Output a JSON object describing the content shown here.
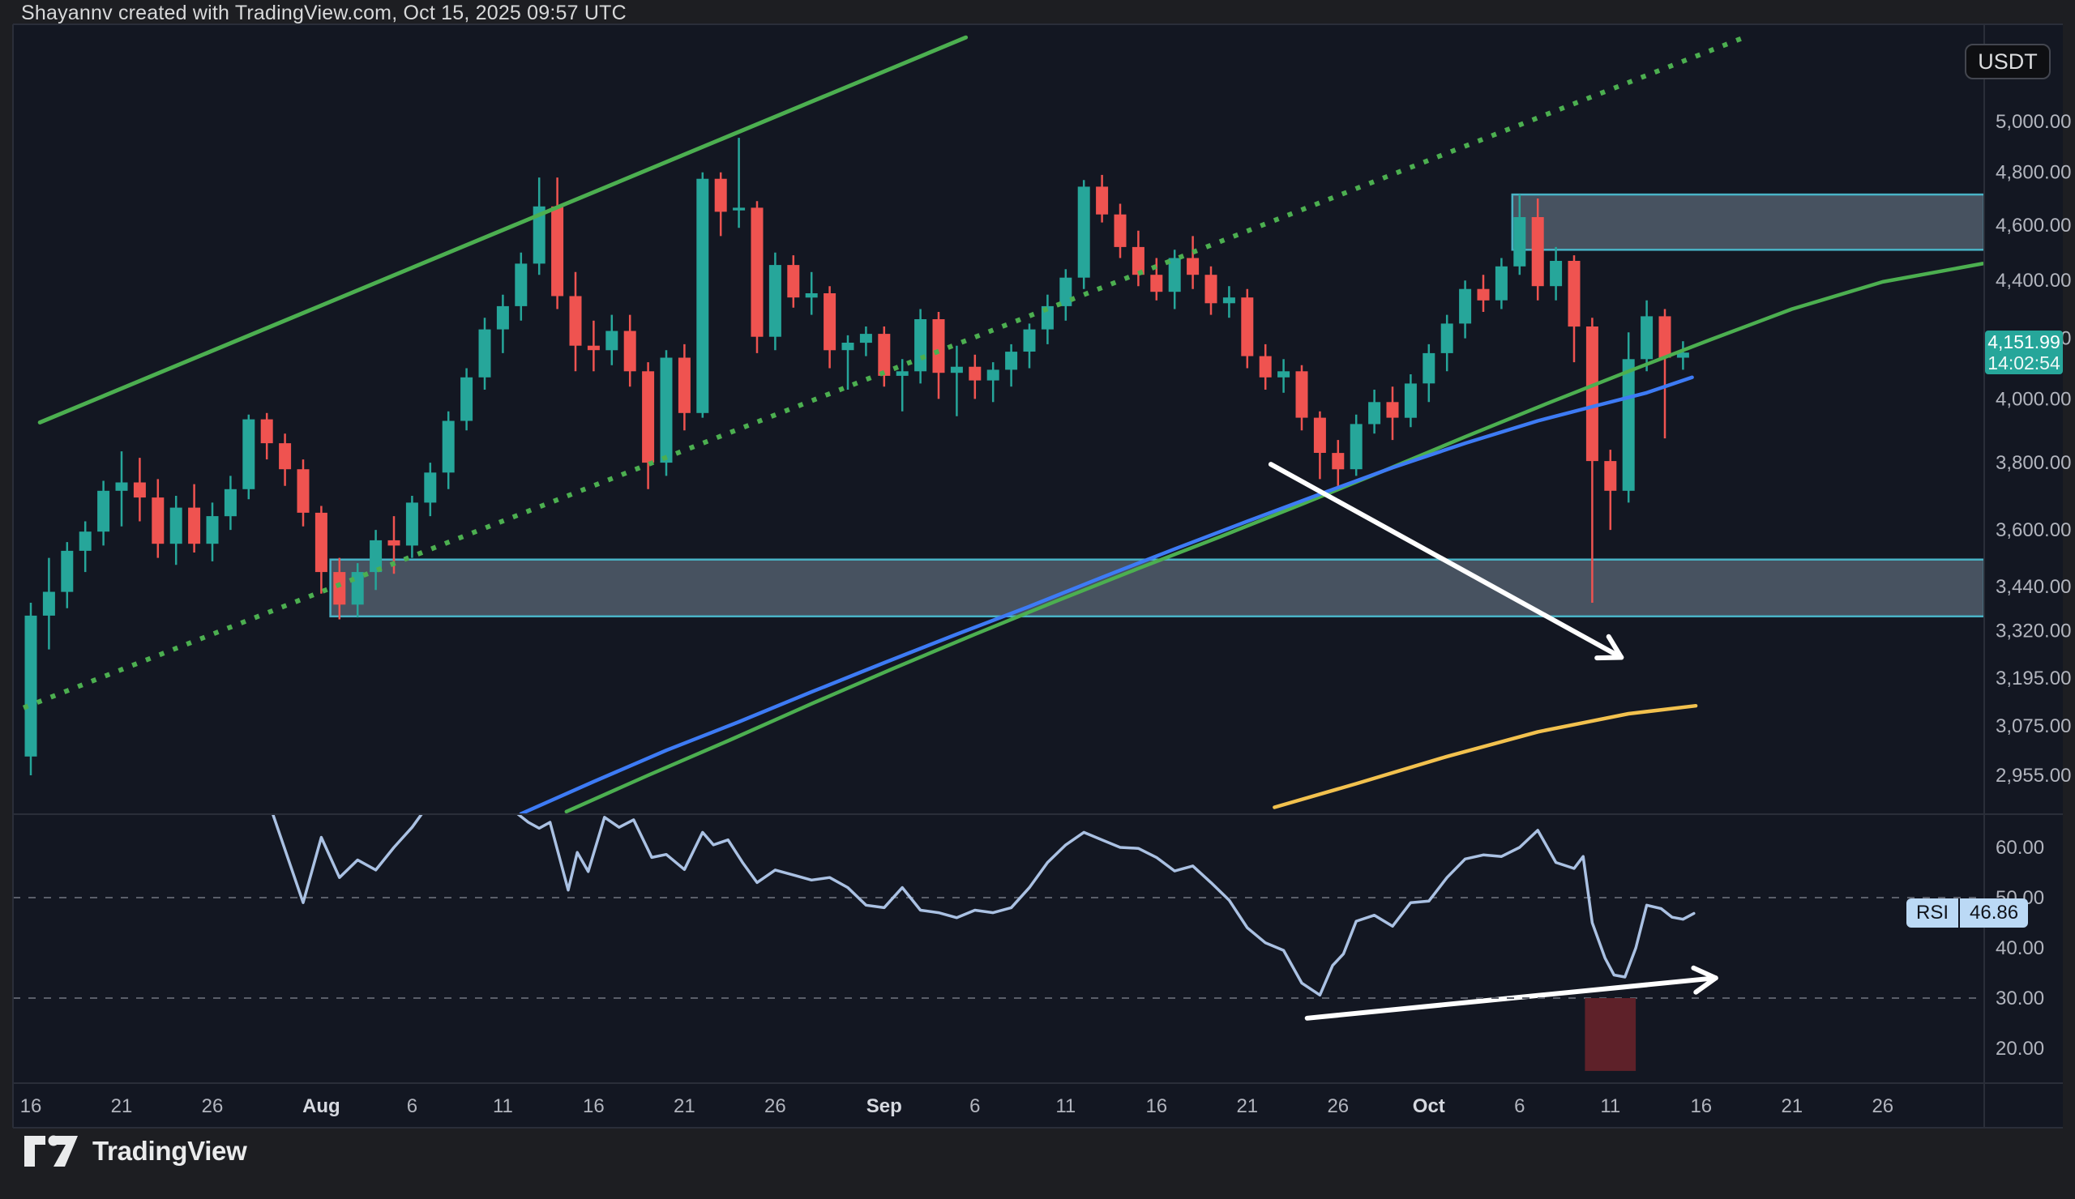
{
  "header": {
    "title": "Shayannv created with TradingView.com, Oct 15, 2025 09:57 UTC"
  },
  "toolbar": {
    "currency_button": "USDT"
  },
  "watermark": {
    "brand": "TradingView"
  },
  "price_scale": {
    "labels": [
      {
        "text": "5,000.00",
        "value": 5000
      },
      {
        "text": "4,800.00",
        "value": 4800
      },
      {
        "text": "4,600.00",
        "value": 4600
      },
      {
        "text": "4,400.00",
        "value": 4400
      },
      {
        "text": "4,200.00",
        "value": 4200
      },
      {
        "text": "4,000.00",
        "value": 4000
      },
      {
        "text": "3,800.00",
        "value": 3800
      },
      {
        "text": "3,600.00",
        "value": 3600
      },
      {
        "text": "3,440.00",
        "value": 3440
      },
      {
        "text": "3,320.00",
        "value": 3320
      },
      {
        "text": "3,195.00",
        "value": 3195
      },
      {
        "text": "3,075.00",
        "value": 3075
      },
      {
        "text": "2,955.00",
        "value": 2955
      }
    ],
    "last_price": "4,151.99",
    "last_price_value": 4151.99,
    "countdown": "14:02:54"
  },
  "rsi_scale": {
    "labels": [
      {
        "text": "60.00",
        "value": 60
      },
      {
        "text": "50.00",
        "value": 50
      },
      {
        "text": "40.00",
        "value": 40
      },
      {
        "text": "30.00",
        "value": 30
      },
      {
        "text": "20.00",
        "value": 20
      }
    ],
    "dashed_levels": [
      50,
      30
    ],
    "indicator_label": "RSI",
    "indicator_value": "46.86",
    "indicator_value_num": 46.86
  },
  "time_scale": {
    "ticks": [
      {
        "label": "16",
        "day": 0,
        "bold": false
      },
      {
        "label": "21",
        "day": 5,
        "bold": false
      },
      {
        "label": "26",
        "day": 10,
        "bold": false
      },
      {
        "label": "Aug",
        "day": 16,
        "bold": true
      },
      {
        "label": "6",
        "day": 21,
        "bold": false
      },
      {
        "label": "11",
        "day": 26,
        "bold": false
      },
      {
        "label": "16",
        "day": 31,
        "bold": false
      },
      {
        "label": "21",
        "day": 36,
        "bold": false
      },
      {
        "label": "26",
        "day": 41,
        "bold": false
      },
      {
        "label": "Sep",
        "day": 47,
        "bold": true
      },
      {
        "label": "6",
        "day": 52,
        "bold": false
      },
      {
        "label": "11",
        "day": 57,
        "bold": false
      },
      {
        "label": "16",
        "day": 62,
        "bold": false
      },
      {
        "label": "21",
        "day": 67,
        "bold": false
      },
      {
        "label": "26",
        "day": 72,
        "bold": false
      },
      {
        "label": "Oct",
        "day": 77,
        "bold": true
      },
      {
        "label": "6",
        "day": 82,
        "bold": false
      },
      {
        "label": "11",
        "day": 87,
        "bold": false
      },
      {
        "label": "16",
        "day": 92,
        "bold": false
      },
      {
        "label": "21",
        "day": 97,
        "bold": false
      },
      {
        "label": "26",
        "day": 102,
        "bold": false
      }
    ]
  },
  "chart_data": {
    "type": "candlestick",
    "interval": "1D",
    "quote_currency": "USDT",
    "start_date": "2025-07-16",
    "end_date": "2025-10-15",
    "last_close": 4151.99,
    "candles_ohlc": [
      [
        3000,
        3395,
        2955,
        3360
      ],
      [
        3360,
        3520,
        3270,
        3425
      ],
      [
        3425,
        3565,
        3380,
        3540
      ],
      [
        3540,
        3625,
        3480,
        3595
      ],
      [
        3595,
        3745,
        3555,
        3715
      ],
      [
        3715,
        3835,
        3610,
        3740
      ],
      [
        3740,
        3815,
        3625,
        3695
      ],
      [
        3695,
        3750,
        3520,
        3560
      ],
      [
        3560,
        3700,
        3500,
        3665
      ],
      [
        3665,
        3735,
        3535,
        3560
      ],
      [
        3560,
        3680,
        3510,
        3640
      ],
      [
        3640,
        3760,
        3600,
        3720
      ],
      [
        3720,
        3950,
        3690,
        3935
      ],
      [
        3935,
        3955,
        3810,
        3860
      ],
      [
        3860,
        3890,
        3730,
        3780
      ],
      [
        3780,
        3810,
        3610,
        3650
      ],
      [
        3650,
        3670,
        3420,
        3480
      ],
      [
        3480,
        3520,
        3350,
        3390
      ],
      [
        3390,
        3505,
        3355,
        3480
      ],
      [
        3480,
        3600,
        3430,
        3570
      ],
      [
        3570,
        3640,
        3475,
        3555
      ],
      [
        3555,
        3700,
        3520,
        3680
      ],
      [
        3680,
        3800,
        3640,
        3770
      ],
      [
        3770,
        3960,
        3720,
        3930
      ],
      [
        3930,
        4100,
        3900,
        4070
      ],
      [
        4070,
        4270,
        4030,
        4230
      ],
      [
        4230,
        4350,
        4150,
        4310
      ],
      [
        4310,
        4500,
        4260,
        4460
      ],
      [
        4460,
        4780,
        4420,
        4670
      ],
      [
        4670,
        4780,
        4300,
        4345
      ],
      [
        4345,
        4430,
        4090,
        4175
      ],
      [
        4175,
        4260,
        4090,
        4160
      ],
      [
        4160,
        4280,
        4110,
        4225
      ],
      [
        4225,
        4280,
        4040,
        4090
      ],
      [
        4090,
        4120,
        3720,
        3800
      ],
      [
        3800,
        4160,
        3760,
        4135
      ],
      [
        4135,
        4180,
        3900,
        3955
      ],
      [
        3955,
        4800,
        3940,
        4775
      ],
      [
        4775,
        4800,
        4560,
        4650
      ],
      [
        4655,
        4935,
        4590,
        4665
      ],
      [
        4665,
        4690,
        4150,
        4205
      ],
      [
        4205,
        4500,
        4160,
        4455
      ],
      [
        4455,
        4490,
        4305,
        4340
      ],
      [
        4340,
        4430,
        4280,
        4355
      ],
      [
        4355,
        4380,
        4100,
        4160
      ],
      [
        4160,
        4210,
        4030,
        4185
      ],
      [
        4185,
        4240,
        4140,
        4215
      ],
      [
        4215,
        4240,
        4040,
        4075
      ],
      [
        4075,
        4130,
        3960,
        4090
      ],
      [
        4090,
        4300,
        4050,
        4265
      ],
      [
        4265,
        4290,
        4000,
        4085
      ],
      [
        4085,
        4175,
        3945,
        4105
      ],
      [
        4105,
        4145,
        4000,
        4060
      ],
      [
        4060,
        4120,
        3990,
        4095
      ],
      [
        4095,
        4180,
        4040,
        4155
      ],
      [
        4155,
        4250,
        4100,
        4230
      ],
      [
        4230,
        4350,
        4180,
        4310
      ],
      [
        4310,
        4440,
        4260,
        4410
      ],
      [
        4410,
        4770,
        4370,
        4745
      ],
      [
        4745,
        4790,
        4610,
        4640
      ],
      [
        4640,
        4680,
        4480,
        4520
      ],
      [
        4520,
        4580,
        4380,
        4420
      ],
      [
        4420,
        4480,
        4330,
        4360
      ],
      [
        4360,
        4510,
        4300,
        4480
      ],
      [
        4480,
        4560,
        4370,
        4420
      ],
      [
        4420,
        4450,
        4280,
        4320
      ],
      [
        4320,
        4380,
        4270,
        4340
      ],
      [
        4340,
        4370,
        4100,
        4140
      ],
      [
        4140,
        4180,
        4030,
        4070
      ],
      [
        4070,
        4130,
        4020,
        4090
      ],
      [
        4090,
        4110,
        3900,
        3940
      ],
      [
        3940,
        3960,
        3750,
        3830
      ],
      [
        3830,
        3870,
        3720,
        3780
      ],
      [
        3780,
        3950,
        3760,
        3920
      ],
      [
        3920,
        4030,
        3890,
        3990
      ],
      [
        3990,
        4040,
        3870,
        3940
      ],
      [
        3940,
        4080,
        3910,
        4050
      ],
      [
        4050,
        4180,
        3990,
        4150
      ],
      [
        4150,
        4280,
        4090,
        4250
      ],
      [
        4250,
        4400,
        4200,
        4370
      ],
      [
        4370,
        4420,
        4290,
        4330
      ],
      [
        4330,
        4480,
        4300,
        4450
      ],
      [
        4450,
        4715,
        4420,
        4630
      ],
      [
        4630,
        4700,
        4330,
        4380
      ],
      [
        4380,
        4520,
        4330,
        4470
      ],
      [
        4470,
        4490,
        4120,
        4240
      ],
      [
        4240,
        4270,
        3395,
        3805
      ],
      [
        3805,
        3840,
        3600,
        3715
      ],
      [
        3715,
        4220,
        3680,
        4130
      ],
      [
        4130,
        4330,
        4090,
        4275
      ],
      [
        4275,
        4300,
        3875,
        4135
      ],
      [
        4135,
        4190,
        4095,
        4152
      ]
    ],
    "rsi_series": [
      [
        13.2,
        68
      ],
      [
        15,
        49
      ],
      [
        16,
        62
      ],
      [
        17,
        54
      ],
      [
        18,
        57.5
      ],
      [
        19,
        55.5
      ],
      [
        20,
        60
      ],
      [
        21,
        64
      ],
      [
        21.8,
        68
      ],
      [
        22.6,
        71
      ],
      [
        23.4,
        70
      ],
      [
        24.2,
        73
      ],
      [
        25,
        72
      ],
      [
        26,
        69
      ],
      [
        27.4,
        65
      ],
      [
        28,
        63.8
      ],
      [
        28.6,
        65
      ],
      [
        29.6,
        51.5
      ],
      [
        30.1,
        59
      ],
      [
        30.7,
        55.2
      ],
      [
        31.6,
        66
      ],
      [
        32.4,
        64
      ],
      [
        33.2,
        65.5
      ],
      [
        34.2,
        58
      ],
      [
        35,
        58.6
      ],
      [
        36,
        55.6
      ],
      [
        37,
        63
      ],
      [
        37.6,
        60.5
      ],
      [
        38.4,
        61.5
      ],
      [
        39.2,
        57
      ],
      [
        40,
        53
      ],
      [
        41,
        55.5
      ],
      [
        42,
        54.5
      ],
      [
        43,
        53.5
      ],
      [
        44,
        54
      ],
      [
        45,
        52
      ],
      [
        46,
        48.5
      ],
      [
        47,
        48
      ],
      [
        48,
        52
      ],
      [
        49,
        47.5
      ],
      [
        50,
        47
      ],
      [
        51,
        46
      ],
      [
        52,
        47.5
      ],
      [
        53,
        47
      ],
      [
        54,
        48
      ],
      [
        55,
        52
      ],
      [
        56,
        57
      ],
      [
        57,
        60.5
      ],
      [
        58,
        63
      ],
      [
        59,
        61.5
      ],
      [
        60,
        60
      ],
      [
        61,
        59.8
      ],
      [
        62,
        58
      ],
      [
        63,
        55.3
      ],
      [
        64,
        56.3
      ],
      [
        65,
        53
      ],
      [
        66,
        49.5
      ],
      [
        67,
        44
      ],
      [
        68,
        41
      ],
      [
        69,
        39.5
      ],
      [
        70,
        33
      ],
      [
        71,
        30.6
      ],
      [
        71.7,
        36.5
      ],
      [
        72.3,
        38.8
      ],
      [
        73,
        45.3
      ],
      [
        74,
        46.5
      ],
      [
        75,
        44.3
      ],
      [
        76,
        49
      ],
      [
        77,
        49.3
      ],
      [
        78,
        54
      ],
      [
        79,
        57.7
      ],
      [
        80,
        58.5
      ],
      [
        81,
        58.2
      ],
      [
        82,
        60
      ],
      [
        83,
        63.4
      ],
      [
        84,
        57
      ],
      [
        85,
        55.8
      ],
      [
        85.5,
        58.2
      ],
      [
        86,
        45
      ],
      [
        86.7,
        38
      ],
      [
        87.2,
        34.6
      ],
      [
        87.8,
        34.2
      ],
      [
        88.4,
        40
      ],
      [
        89,
        48.5
      ],
      [
        89.8,
        47.8
      ],
      [
        90.4,
        46.1
      ],
      [
        91,
        45.7
      ],
      [
        91.6,
        46.86
      ]
    ],
    "overlays": {
      "zones": [
        {
          "name": "supply-zone",
          "start_day": 81.6,
          "to_right_edge": true,
          "price_top": 4715,
          "price_bottom": 4510
        },
        {
          "name": "support-zone",
          "start_day": 16.5,
          "to_right_edge": true,
          "price_top": 3515,
          "price_bottom": 3358
        }
      ],
      "channel_upper_solid": {
        "p1": [
          0.5,
          3925
        ],
        "p2": [
          51.5,
          5350
        ]
      },
      "channel_lower_dotted": {
        "p1": [
          -0.4,
          3120
        ],
        "p2": [
          94.2,
          5345
        ]
      },
      "ma_blue": [
        [
          27,
          2865
        ],
        [
          31,
          2940
        ],
        [
          35,
          3015
        ],
        [
          39,
          3085
        ],
        [
          43,
          3160
        ],
        [
          47,
          3235
        ],
        [
          51,
          3310
        ],
        [
          55,
          3385
        ],
        [
          59,
          3465
        ],
        [
          63,
          3545
        ],
        [
          67,
          3625
        ],
        [
          71,
          3705
        ],
        [
          75,
          3785
        ],
        [
          79,
          3860
        ],
        [
          83,
          3930
        ],
        [
          86,
          3975
        ],
        [
          89,
          4020
        ],
        [
          91.5,
          4070
        ]
      ],
      "ma_green": [
        [
          29.5,
          2870
        ],
        [
          34,
          2955
        ],
        [
          38.5,
          3040
        ],
        [
          43,
          3130
        ],
        [
          47.5,
          3220
        ],
        [
          52,
          3310
        ],
        [
          56.5,
          3400
        ],
        [
          61,
          3490
        ],
        [
          65.5,
          3580
        ],
        [
          70,
          3675
        ],
        [
          74.5,
          3775
        ],
        [
          79,
          3880
        ],
        [
          83.5,
          3985
        ],
        [
          88,
          4090
        ],
        [
          92.5,
          4195
        ],
        [
          97,
          4300
        ],
        [
          102,
          4395
        ],
        [
          107.5,
          4460
        ]
      ],
      "ma_yellow": [
        [
          68.5,
          2880
        ],
        [
          73,
          2935
        ],
        [
          78,
          3000
        ],
        [
          83,
          3060
        ],
        [
          88,
          3105
        ],
        [
          91.7,
          3125
        ]
      ],
      "arrow_main": {
        "from_day": 68.3,
        "from_price": 3795,
        "to_day": 87.6,
        "to_price": 3249
      },
      "arrow_rsi": {
        "from_day": 70.3,
        "from_value": 26,
        "to_day": 92.8,
        "to_value": 34
      },
      "rsi_red_box": {
        "start_day": 85.6,
        "end_day": 88.4,
        "value_top": 30,
        "value_bottom": 15.5
      }
    }
  },
  "colors": {
    "background_outer": "#1d1e22",
    "background_chart": "#131722",
    "border": "#2a2e39",
    "text_axis": "#b2b5be",
    "text_axis_bright": "#d6d9e0",
    "candle_up": "#26a69a",
    "candle_down": "#ef5350",
    "channel_line": "#4caf50",
    "ma_blue": "#3d7bf5",
    "ma_green": "#4caf50",
    "ma_yellow": "#f2c14e",
    "zone_fill": "rgba(144,164,184,0.42)",
    "zone_border": "#49b3c6",
    "rsi_line": "#aac1e3",
    "rsi_grid": "#5a5e69",
    "rsi_box_fill": "#5e2129",
    "arrow": "#ffffff",
    "price_badge_bg": "#26a69a",
    "price_badge_text": "#ffffff",
    "rsi_badge_bg": "#bbd9f5",
    "rsi_badge_text": "#10131a",
    "logo": "#eaebec"
  }
}
